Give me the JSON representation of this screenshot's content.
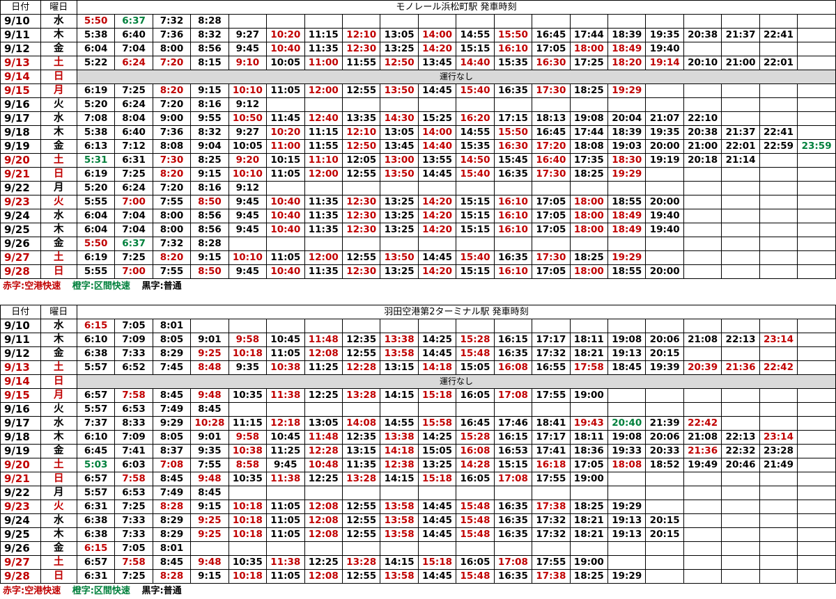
{
  "header": {
    "date": "日付",
    "dow": "曜日",
    "no_service": "運行なし"
  },
  "legend": {
    "red": "赤字:空港快速",
    "green": "橙字:区間快速",
    "black": "黒字:普通"
  },
  "colors": {
    "red": "#c00000",
    "green": "#00803c",
    "black": "#000000",
    "no_service_bg": "#d9d9d9"
  },
  "sections": [
    {
      "title": "モノレール浜松町駅 発車時刻",
      "rows": [
        {
          "date": "9/10",
          "dow": "水",
          "hol": false,
          "times": [
            "5:50",
            "6:37",
            "7:32",
            "8:28"
          ],
          "colors": "rgkk"
        },
        {
          "date": "9/11",
          "dow": "木",
          "hol": false,
          "times": [
            "5:38",
            "6:40",
            "7:36",
            "8:32",
            "9:27",
            "10:20",
            "11:15",
            "12:10",
            "13:05",
            "14:00",
            "14:55",
            "15:50",
            "16:45",
            "17:44",
            "18:39",
            "19:35",
            "20:38",
            "21:37",
            "22:41"
          ],
          "colors": "kkkkkrkrkrkrkkkkkkk"
        },
        {
          "date": "9/12",
          "dow": "金",
          "hol": false,
          "times": [
            "6:04",
            "7:04",
            "8:00",
            "8:56",
            "9:45",
            "10:40",
            "11:35",
            "12:30",
            "13:25",
            "14:20",
            "15:15",
            "16:10",
            "17:05",
            "18:00",
            "18:49",
            "19:40"
          ],
          "colors": "kkkkkrkrkrkrkrrk"
        },
        {
          "date": "9/13",
          "dow": "土",
          "hol": true,
          "times": [
            "5:22",
            "6:24",
            "7:20",
            "8:15",
            "9:10",
            "10:05",
            "11:00",
            "11:55",
            "12:50",
            "13:45",
            "14:40",
            "15:35",
            "16:30",
            "17:25",
            "18:20",
            "19:14",
            "20:10",
            "21:00",
            "22:01"
          ],
          "colors": "krrkrkrkrkrkrkrrkkk"
        },
        {
          "date": "9/14",
          "dow": "日",
          "hol": true,
          "nosvc": true,
          "times": [],
          "colors": ""
        },
        {
          "date": "9/15",
          "dow": "月",
          "hol": true,
          "times": [
            "6:19",
            "7:25",
            "8:20",
            "9:15",
            "10:10",
            "11:05",
            "12:00",
            "12:55",
            "13:50",
            "14:45",
            "15:40",
            "16:35",
            "17:30",
            "18:25",
            "19:29"
          ],
          "colors": "kkrkrkrkrkrkrkr"
        },
        {
          "date": "9/16",
          "dow": "火",
          "hol": false,
          "times": [
            "5:20",
            "6:24",
            "7:20",
            "8:16",
            "9:12"
          ],
          "colors": "kkkkk"
        },
        {
          "date": "9/17",
          "dow": "水",
          "hol": false,
          "times": [
            "7:08",
            "8:04",
            "9:00",
            "9:55",
            "10:50",
            "11:45",
            "12:40",
            "13:35",
            "14:30",
            "15:25",
            "16:20",
            "17:15",
            "18:13",
            "19:08",
            "20:04",
            "21:07",
            "22:10"
          ],
          "colors": "kkkkrkrkrkrkkkkkk"
        },
        {
          "date": "9/18",
          "dow": "木",
          "hol": false,
          "times": [
            "5:38",
            "6:40",
            "7:36",
            "8:32",
            "9:27",
            "10:20",
            "11:15",
            "12:10",
            "13:05",
            "14:00",
            "14:55",
            "15:50",
            "16:45",
            "17:44",
            "18:39",
            "19:35",
            "20:38",
            "21:37",
            "22:41"
          ],
          "colors": "kkkkkrkrkrkrkkkkkkk"
        },
        {
          "date": "9/19",
          "dow": "金",
          "hol": false,
          "times": [
            "6:13",
            "7:12",
            "8:08",
            "9:04",
            "10:05",
            "11:00",
            "11:55",
            "12:50",
            "13:45",
            "14:40",
            "15:35",
            "16:30",
            "17:20",
            "18:08",
            "19:03",
            "20:00",
            "21:00",
            "22:01",
            "22:59",
            "23:59"
          ],
          "colors": "kkkkkrkrkrkrrkkkkkkg"
        },
        {
          "date": "9/20",
          "dow": "土",
          "hol": true,
          "times": [
            "5:31",
            "6:31",
            "7:30",
            "8:25",
            "9:20",
            "10:15",
            "11:10",
            "12:05",
            "13:00",
            "13:55",
            "14:50",
            "15:45",
            "16:40",
            "17:35",
            "18:30",
            "19:19",
            "20:18",
            "21:14"
          ],
          "colors": "gkrkrkrkrkrkrkrkkk"
        },
        {
          "date": "9/21",
          "dow": "日",
          "hol": true,
          "times": [
            "6:19",
            "7:25",
            "8:20",
            "9:15",
            "10:10",
            "11:05",
            "12:00",
            "12:55",
            "13:50",
            "14:45",
            "15:40",
            "16:35",
            "17:30",
            "18:25",
            "19:29"
          ],
          "colors": "kkrkrkrkrkrkrkr"
        },
        {
          "date": "9/22",
          "dow": "月",
          "hol": false,
          "times": [
            "5:20",
            "6:24",
            "7:20",
            "8:16",
            "9:12"
          ],
          "colors": "kkkkk"
        },
        {
          "date": "9/23",
          "dow": "火",
          "hol": true,
          "times": [
            "5:55",
            "7:00",
            "7:55",
            "8:50",
            "9:45",
            "10:40",
            "11:35",
            "12:30",
            "13:25",
            "14:20",
            "15:15",
            "16:10",
            "17:05",
            "18:00",
            "18:55",
            "20:00"
          ],
          "colors": "krkrkrkrkrkrkrkk"
        },
        {
          "date": "9/24",
          "dow": "水",
          "hol": false,
          "times": [
            "6:04",
            "7:04",
            "8:00",
            "8:56",
            "9:45",
            "10:40",
            "11:35",
            "12:30",
            "13:25",
            "14:20",
            "15:15",
            "16:10",
            "17:05",
            "18:00",
            "18:49",
            "19:40"
          ],
          "colors": "kkkkkrkrkrkrkrrk"
        },
        {
          "date": "9/25",
          "dow": "木",
          "hol": false,
          "times": [
            "6:04",
            "7:04",
            "8:00",
            "8:56",
            "9:45",
            "10:40",
            "11:35",
            "12:30",
            "13:25",
            "14:20",
            "15:15",
            "16:10",
            "17:05",
            "18:00",
            "18:49",
            "19:40"
          ],
          "colors": "kkkkkrkrkrkrkrrk"
        },
        {
          "date": "9/26",
          "dow": "金",
          "hol": false,
          "times": [
            "5:50",
            "6:37",
            "7:32",
            "8:28"
          ],
          "colors": "rgkk"
        },
        {
          "date": "9/27",
          "dow": "土",
          "hol": true,
          "times": [
            "6:19",
            "7:25",
            "8:20",
            "9:15",
            "10:10",
            "11:05",
            "12:00",
            "12:55",
            "13:50",
            "14:45",
            "15:40",
            "16:35",
            "17:30",
            "18:25",
            "19:29"
          ],
          "colors": "kkrkrkrkrkrkrkr"
        },
        {
          "date": "9/28",
          "dow": "日",
          "hol": true,
          "times": [
            "5:55",
            "7:00",
            "7:55",
            "8:50",
            "9:45",
            "10:40",
            "11:35",
            "12:30",
            "13:25",
            "14:20",
            "15:15",
            "16:10",
            "17:05",
            "18:00",
            "18:55",
            "20:00"
          ],
          "colors": "krkrkrkrkrkrkrkk"
        }
      ]
    },
    {
      "title": "羽田空港第2ターミナル駅 発車時刻",
      "rows": [
        {
          "date": "9/10",
          "dow": "水",
          "hol": false,
          "times": [
            "6:15",
            "7:05",
            "8:01"
          ],
          "colors": "rkk"
        },
        {
          "date": "9/11",
          "dow": "木",
          "hol": false,
          "times": [
            "6:10",
            "7:09",
            "8:05",
            "9:01",
            "9:58",
            "10:45",
            "11:48",
            "12:35",
            "13:38",
            "14:25",
            "15:28",
            "16:15",
            "17:17",
            "18:11",
            "19:08",
            "20:06",
            "21:08",
            "22:13",
            "23:14"
          ],
          "colors": "kkkkrkrkrkrkkkkkkkr"
        },
        {
          "date": "9/12",
          "dow": "金",
          "hol": false,
          "times": [
            "6:38",
            "7:33",
            "8:29",
            "9:25",
            "10:18",
            "11:05",
            "12:08",
            "12:55",
            "13:58",
            "14:45",
            "15:48",
            "16:35",
            "17:32",
            "18:21",
            "19:13",
            "20:15"
          ],
          "colors": "kkkrrkrkrkrkkkkk"
        },
        {
          "date": "9/13",
          "dow": "土",
          "hol": true,
          "times": [
            "5:57",
            "6:52",
            "7:45",
            "8:48",
            "9:35",
            "10:38",
            "11:25",
            "12:28",
            "13:15",
            "14:18",
            "15:05",
            "16:08",
            "16:55",
            "17:58",
            "18:45",
            "19:39",
            "20:39",
            "21:36",
            "22:42"
          ],
          "colors": "kkkrkrkrkrkrkrkkrrr"
        },
        {
          "date": "9/14",
          "dow": "日",
          "hol": true,
          "nosvc": true,
          "times": [],
          "colors": ""
        },
        {
          "date": "9/15",
          "dow": "月",
          "hol": true,
          "times": [
            "6:57",
            "7:58",
            "8:45",
            "9:48",
            "10:35",
            "11:38",
            "12:25",
            "13:28",
            "14:15",
            "15:18",
            "16:05",
            "17:08",
            "17:55",
            "19:00"
          ],
          "colors": "krkrkrkrkrkrkk"
        },
        {
          "date": "9/16",
          "dow": "火",
          "hol": false,
          "times": [
            "5:57",
            "6:53",
            "7:49",
            "8:45"
          ],
          "colors": "kkkk"
        },
        {
          "date": "9/17",
          "dow": "水",
          "hol": false,
          "times": [
            "7:37",
            "8:33",
            "9:29",
            "10:28",
            "11:15",
            "12:18",
            "13:05",
            "14:08",
            "14:55",
            "15:58",
            "16:45",
            "17:46",
            "18:41",
            "19:43",
            "20:40",
            "21:39",
            "22:42"
          ],
          "colors": "kkkrkrkrkrkkkrgkr"
        },
        {
          "date": "9/18",
          "dow": "木",
          "hol": false,
          "times": [
            "6:10",
            "7:09",
            "8:05",
            "9:01",
            "9:58",
            "10:45",
            "11:48",
            "12:35",
            "13:38",
            "14:25",
            "15:28",
            "16:15",
            "17:17",
            "18:11",
            "19:08",
            "20:06",
            "21:08",
            "22:13",
            "23:14"
          ],
          "colors": "kkkkrkrkrkrkkkkkkkr"
        },
        {
          "date": "9/19",
          "dow": "金",
          "hol": false,
          "times": [
            "6:45",
            "7:41",
            "8:37",
            "9:35",
            "10:38",
            "11:25",
            "12:28",
            "13:15",
            "14:18",
            "15:05",
            "16:08",
            "16:53",
            "17:41",
            "18:36",
            "19:33",
            "20:33",
            "21:36",
            "22:32",
            "23:28"
          ],
          "colors": "kkkkrkrkrkrkkkkkrkk"
        },
        {
          "date": "9/20",
          "dow": "土",
          "hol": true,
          "times": [
            "5:03",
            "6:03",
            "7:08",
            "7:55",
            "8:58",
            "9:45",
            "10:48",
            "11:35",
            "12:38",
            "13:25",
            "14:28",
            "15:15",
            "16:18",
            "17:05",
            "18:08",
            "18:52",
            "19:49",
            "20:46",
            "21:49"
          ],
          "colors": "gkrkrkrkrkrkrkrkkkk"
        },
        {
          "date": "9/21",
          "dow": "日",
          "hol": true,
          "times": [
            "6:57",
            "7:58",
            "8:45",
            "9:48",
            "10:35",
            "11:38",
            "12:25",
            "13:28",
            "14:15",
            "15:18",
            "16:05",
            "17:08",
            "17:55",
            "19:00"
          ],
          "colors": "krkrkrkrkrkrkk"
        },
        {
          "date": "9/22",
          "dow": "月",
          "hol": false,
          "times": [
            "5:57",
            "6:53",
            "7:49",
            "8:45"
          ],
          "colors": "kkkk"
        },
        {
          "date": "9/23",
          "dow": "火",
          "hol": true,
          "times": [
            "6:31",
            "7:25",
            "8:28",
            "9:15",
            "10:18",
            "11:05",
            "12:08",
            "12:55",
            "13:58",
            "14:45",
            "15:48",
            "16:35",
            "17:38",
            "18:25",
            "19:29"
          ],
          "colors": "kkrkrkrkrkrkrkk"
        },
        {
          "date": "9/24",
          "dow": "水",
          "hol": false,
          "times": [
            "6:38",
            "7:33",
            "8:29",
            "9:25",
            "10:18",
            "11:05",
            "12:08",
            "12:55",
            "13:58",
            "14:45",
            "15:48",
            "16:35",
            "17:32",
            "18:21",
            "19:13",
            "20:15"
          ],
          "colors": "kkkrrkrkrkrkkkkk"
        },
        {
          "date": "9/25",
          "dow": "木",
          "hol": false,
          "times": [
            "6:38",
            "7:33",
            "8:29",
            "9:25",
            "10:18",
            "11:05",
            "12:08",
            "12:55",
            "13:58",
            "14:45",
            "15:48",
            "16:35",
            "17:32",
            "18:21",
            "19:13",
            "20:15"
          ],
          "colors": "kkkrrkrkrkrkkkkk"
        },
        {
          "date": "9/26",
          "dow": "金",
          "hol": false,
          "times": [
            "6:15",
            "7:05",
            "8:01"
          ],
          "colors": "rkk"
        },
        {
          "date": "9/27",
          "dow": "土",
          "hol": true,
          "times": [
            "6:57",
            "7:58",
            "8:45",
            "9:48",
            "10:35",
            "11:38",
            "12:25",
            "13:28",
            "14:15",
            "15:18",
            "16:05",
            "17:08",
            "17:55",
            "19:00"
          ],
          "colors": "krkrkrkrkrkrkk"
        },
        {
          "date": "9/28",
          "dow": "日",
          "hol": true,
          "times": [
            "6:31",
            "7:25",
            "8:28",
            "9:15",
            "10:18",
            "11:05",
            "12:08",
            "12:55",
            "13:58",
            "14:45",
            "15:48",
            "16:35",
            "17:38",
            "18:25",
            "19:29"
          ],
          "colors": "kkrkrkrkrkrkrkk"
        }
      ]
    }
  ]
}
